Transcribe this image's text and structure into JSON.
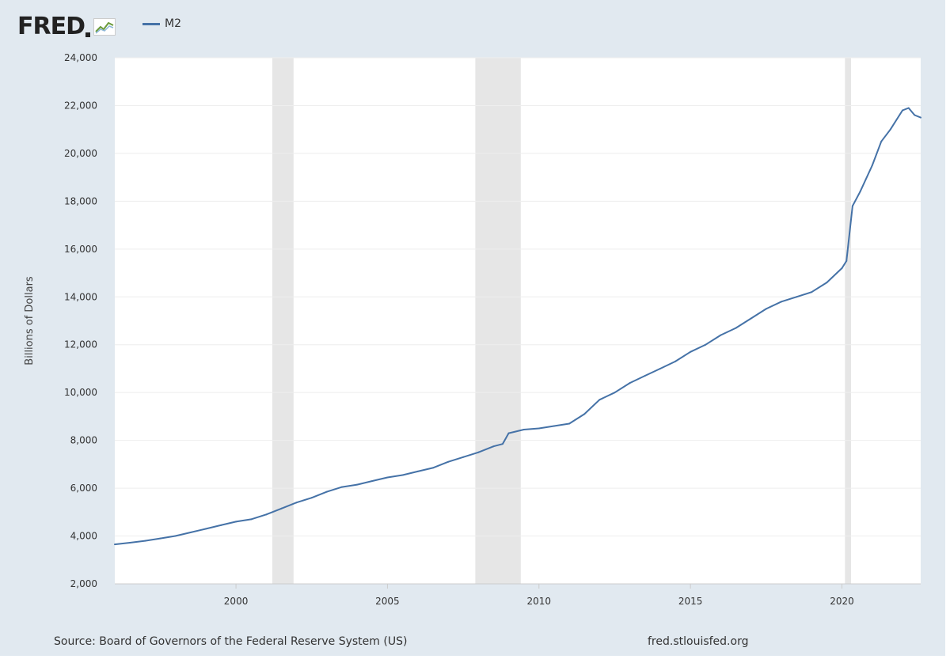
{
  "header": {
    "logo_text": "FRED",
    "legend_label": "M2"
  },
  "footer": {
    "source": "Source: Board of Governors of the Federal Reserve System (US)",
    "site": "fred.stlouisfed.org"
  },
  "colors": {
    "background": "#e1e9f0",
    "plot_bg": "#ffffff",
    "series": "#4572a7",
    "recession": "#e6e6e6",
    "grid": "#eeeeee"
  },
  "chart_data": {
    "type": "line",
    "title": "",
    "xlabel": "",
    "ylabel": "Billions of Dollars",
    "xlim": [
      1996.0,
      2022.6
    ],
    "ylim": [
      2000,
      24000
    ],
    "x_ticks": [
      2000,
      2005,
      2010,
      2015,
      2020
    ],
    "y_ticks": [
      2000,
      4000,
      6000,
      8000,
      10000,
      12000,
      14000,
      16000,
      18000,
      20000,
      22000,
      24000
    ],
    "y_tick_labels": [
      "2,000",
      "4,000",
      "6,000",
      "8,000",
      "10,000",
      "12,000",
      "14,000",
      "16,000",
      "18,000",
      "20,000",
      "22,000",
      "24,000"
    ],
    "grid": "horizontal",
    "legend_position": "top-left",
    "recessions": [
      [
        2001.2,
        2001.9
      ],
      [
        2007.9,
        2009.4
      ],
      [
        2020.1,
        2020.3
      ]
    ],
    "series": [
      {
        "name": "M2",
        "x": [
          1996.0,
          1996.5,
          1997.0,
          1997.5,
          1998.0,
          1998.5,
          1999.0,
          1999.5,
          2000.0,
          2000.5,
          2001.0,
          2001.5,
          2002.0,
          2002.5,
          2003.0,
          2003.5,
          2004.0,
          2004.5,
          2005.0,
          2005.5,
          2006.0,
          2006.5,
          2007.0,
          2007.5,
          2008.0,
          2008.5,
          2008.8,
          2009.0,
          2009.5,
          2010.0,
          2010.5,
          2011.0,
          2011.5,
          2012.0,
          2012.5,
          2013.0,
          2013.5,
          2014.0,
          2014.5,
          2015.0,
          2015.5,
          2016.0,
          2016.5,
          2017.0,
          2017.5,
          2018.0,
          2018.5,
          2019.0,
          2019.5,
          2020.0,
          2020.15,
          2020.35,
          2020.6,
          2021.0,
          2021.3,
          2021.6,
          2022.0,
          2022.2,
          2022.4,
          2022.6
        ],
        "y": [
          3650,
          3720,
          3800,
          3900,
          4000,
          4150,
          4300,
          4450,
          4600,
          4700,
          4900,
          5150,
          5400,
          5600,
          5850,
          6050,
          6150,
          6300,
          6450,
          6550,
          6700,
          6850,
          7100,
          7300,
          7500,
          7750,
          7850,
          8300,
          8450,
          8500,
          8600,
          8700,
          9100,
          9700,
          10000,
          10400,
          10700,
          11000,
          11300,
          11700,
          12000,
          12400,
          12700,
          13100,
          13500,
          13800,
          14000,
          14200,
          14600,
          15200,
          15500,
          17800,
          18400,
          19500,
          20500,
          21000,
          21800,
          21900,
          21600,
          21500
        ]
      }
    ]
  }
}
